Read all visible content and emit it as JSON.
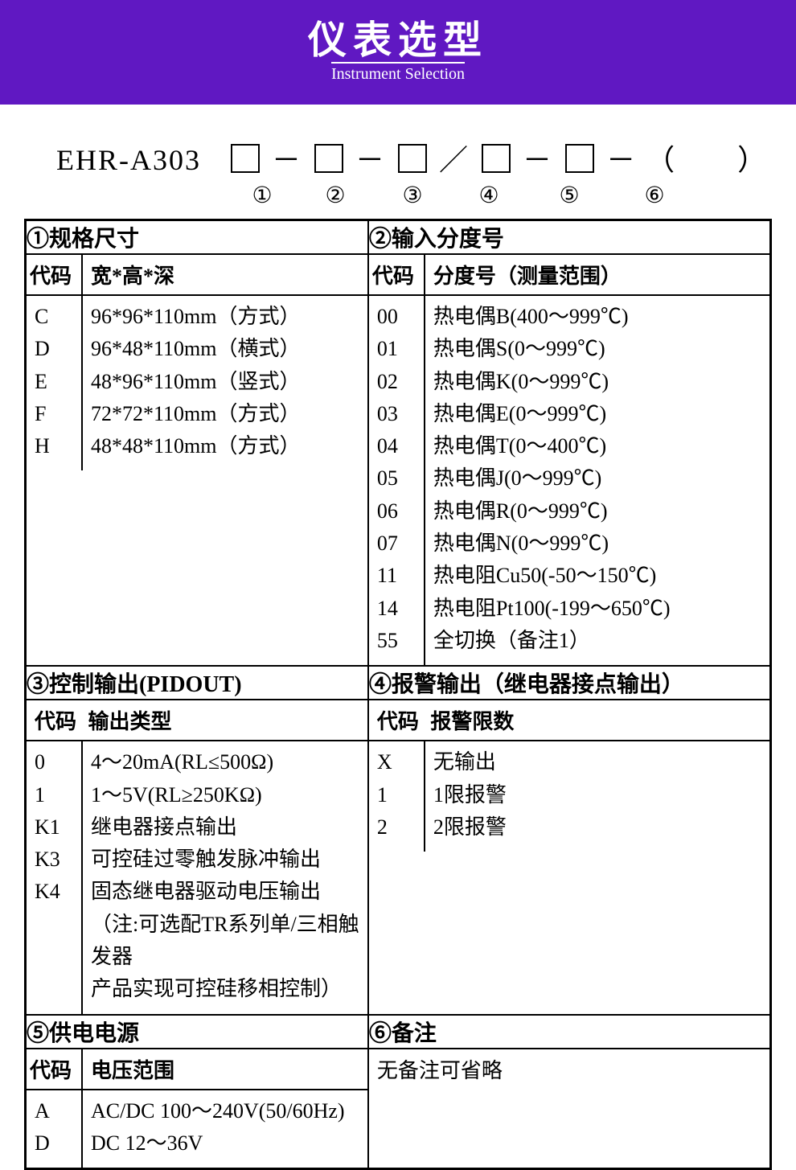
{
  "banner": {
    "title": "仪表选型",
    "subtitle": "Instrument Selection",
    "bg_color": "#6018c2",
    "text_color": "#ffffff"
  },
  "model": {
    "prefix": "EHR-A303",
    "separators": [
      "－",
      "－",
      "／",
      "－",
      "－",
      "（　　）"
    ],
    "circled": [
      "①",
      "②",
      "③",
      "④",
      "⑤",
      "⑥"
    ]
  },
  "sections": {
    "s1": {
      "title": "①规格尺寸",
      "header_code": "代码",
      "header_desc": "宽*高*深",
      "rows": [
        {
          "code": "C",
          "desc": "96*96*110mm（方式）"
        },
        {
          "code": "D",
          "desc": "96*48*110mm（横式）"
        },
        {
          "code": "E",
          "desc": "48*96*110mm（竖式）"
        },
        {
          "code": "F",
          "desc": "72*72*110mm（方式）"
        },
        {
          "code": "H",
          "desc": "48*48*110mm（方式）"
        }
      ]
    },
    "s2": {
      "title": "②输入分度号",
      "header_code": "代码",
      "header_desc": "分度号（测量范围）",
      "rows": [
        {
          "code": "00",
          "desc": "热电偶B(400～999℃)"
        },
        {
          "code": "01",
          "desc": "热电偶S(0～999℃)"
        },
        {
          "code": "02",
          "desc": "热电偶K(0～999℃)"
        },
        {
          "code": "03",
          "desc": "热电偶E(0～999℃)"
        },
        {
          "code": "04",
          "desc": "热电偶T(0～400℃)"
        },
        {
          "code": "05",
          "desc": "热电偶J(0～999℃)"
        },
        {
          "code": "06",
          "desc": "热电偶R(0～999℃)"
        },
        {
          "code": "07",
          "desc": "热电偶N(0～999℃)"
        },
        {
          "code": "11",
          "desc": "热电阻Cu50(-50～150℃)"
        },
        {
          "code": "14",
          "desc": "热电阻Pt100(-199～650℃)"
        },
        {
          "code": "55",
          "desc": "全切换（备注1）"
        }
      ]
    },
    "s3": {
      "title": "③控制输出(PIDOUT)",
      "header_code": "代码",
      "header_desc": "输出类型",
      "rows": [
        {
          "code": "0",
          "desc": "4～20mA(RL≤500Ω)"
        },
        {
          "code": "1",
          "desc": "1～5V(RL≥250KΩ)"
        },
        {
          "code": "K1",
          "desc": "继电器接点输出"
        },
        {
          "code": "K3",
          "desc": "可控硅过零触发脉冲输出"
        },
        {
          "code": "K4",
          "desc": "固态继电器驱动电压输出"
        }
      ],
      "note1": "（注:可选配TR系列单/三相触发器",
      "note2": "产品实现可控硅移相控制）"
    },
    "s4": {
      "title": "④报警输出（继电器接点输出）",
      "header_code": "代码",
      "header_desc": "报警限数",
      "rows": [
        {
          "code": "X",
          "desc": "无输出"
        },
        {
          "code": "1",
          "desc": "1限报警"
        },
        {
          "code": "2",
          "desc": "2限报警"
        }
      ]
    },
    "s5": {
      "title": "⑤供电电源",
      "header_code": "代码",
      "header_desc": "电压范围",
      "rows": [
        {
          "code": "A",
          "desc": "AC/DC 100～240V(50/60Hz)"
        },
        {
          "code": "D",
          "desc": "DC 12～36V"
        }
      ]
    },
    "s6": {
      "title": "⑥备注",
      "note": "无备注可省略"
    }
  }
}
